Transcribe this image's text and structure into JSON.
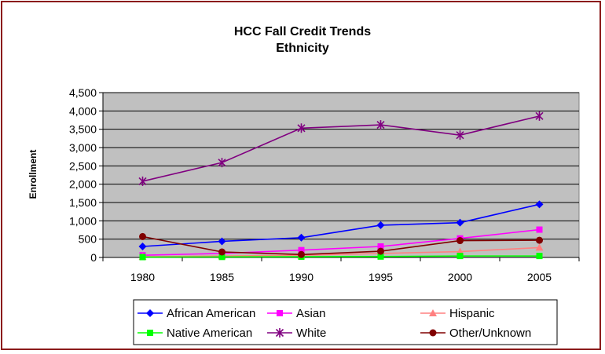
{
  "chart_data": {
    "type": "line",
    "title": "HCC Fall Credit Trends",
    "subtitle": "Ethnicity",
    "xlabel": "",
    "ylabel": "Enrollment",
    "ylim": [
      0,
      4500
    ],
    "yticks": [
      "0",
      "500",
      "1,000",
      "1,500",
      "2,000",
      "2,500",
      "3,000",
      "3,500",
      "4,000",
      "4,500"
    ],
    "ytick_values": [
      0,
      500,
      1000,
      1500,
      2000,
      2500,
      3000,
      3500,
      4000,
      4500
    ],
    "categories": [
      "1980",
      "1985",
      "1990",
      "1995",
      "2000",
      "2005"
    ],
    "grid": "horizontal",
    "legend_position": "bottom",
    "plot_background": "#c0c0c0",
    "series": [
      {
        "name": "African American",
        "color": "#0000ff",
        "marker": "diamond",
        "values": [
          300,
          440,
          540,
          880,
          950,
          1450
        ]
      },
      {
        "name": "Asian",
        "color": "#ff00ff",
        "marker": "square",
        "values": [
          60,
          110,
          200,
          300,
          520,
          760
        ]
      },
      {
        "name": "Hispanic",
        "color": "#ff8080",
        "marker": "triangle",
        "values": [
          20,
          40,
          60,
          110,
          160,
          270
        ]
      },
      {
        "name": "Native American",
        "color": "#00ff00",
        "marker": "square",
        "values": [
          10,
          15,
          20,
          25,
          40,
          40
        ]
      },
      {
        "name": "White",
        "color": "#800080",
        "marker": "star",
        "values": [
          2080,
          2590,
          3530,
          3620,
          3340,
          3860
        ]
      },
      {
        "name": "Other/Unknown",
        "color": "#800000",
        "marker": "circle",
        "values": [
          570,
          150,
          80,
          170,
          460,
          470
        ]
      }
    ]
  }
}
